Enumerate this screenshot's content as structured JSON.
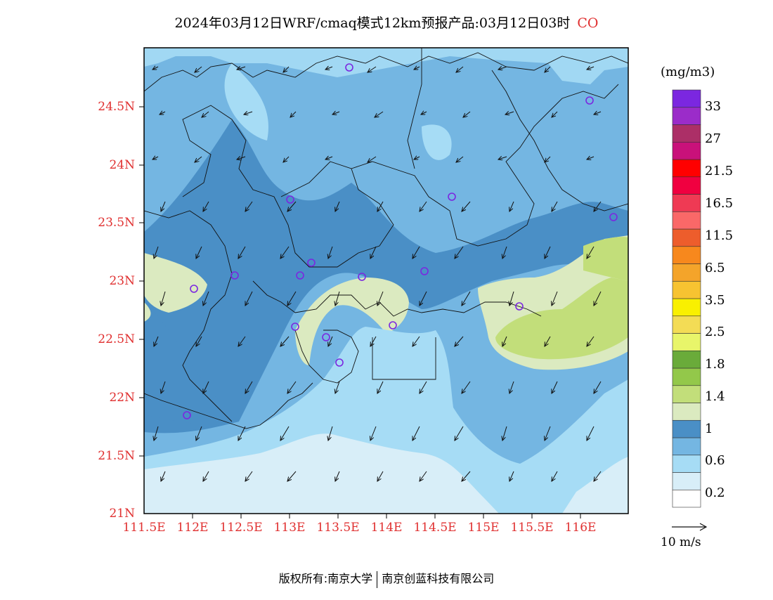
{
  "title": {
    "text": "2024年03月12日WRF/cmaq模式12km预报产品:03月12日03时",
    "species": "CO"
  },
  "map": {
    "lat_labels": [
      "24.5N",
      "24N",
      "23.5N",
      "23N",
      "22.5N",
      "22N",
      "21.5N",
      "21N"
    ],
    "lon_labels": [
      "111.5E",
      "112E",
      "112.5E",
      "113E",
      "113.5E",
      "114E",
      "114.5E",
      "115E",
      "115.5E",
      "116E"
    ],
    "lat_range": [
      21,
      25
    ],
    "lon_range": [
      111.5,
      116.5
    ]
  },
  "colorbar": {
    "unit": "(mg/m3)",
    "colors": [
      "#ffffff",
      "#d8eef8",
      "#a6dcf5",
      "#74b6e2",
      "#4a8fc6",
      "#dbeac0",
      "#c2de7a",
      "#93c84a",
      "#6aab3a",
      "#e8f56a",
      "#f3dc55",
      "#f9f000",
      "#f7c331",
      "#f4a42a",
      "#f7881d",
      "#ed5d2c",
      "#fa6868",
      "#ef3a54",
      "#f00040",
      "#ff0000",
      "#c9117a",
      "#ac2f67",
      "#9b2cc9",
      "#7b27e0"
    ],
    "labels": [
      "0.2",
      "0.6",
      "1",
      "1.4",
      "1.8",
      "2.5",
      "3.5",
      "6.5",
      "11.5",
      "16.5",
      "21.5",
      "27",
      "33"
    ]
  },
  "wind_reference": {
    "label": "10 m/s"
  },
  "footer": {
    "left": "版权所有:南京大学",
    "right": "南京创蓝科技有限公司"
  }
}
